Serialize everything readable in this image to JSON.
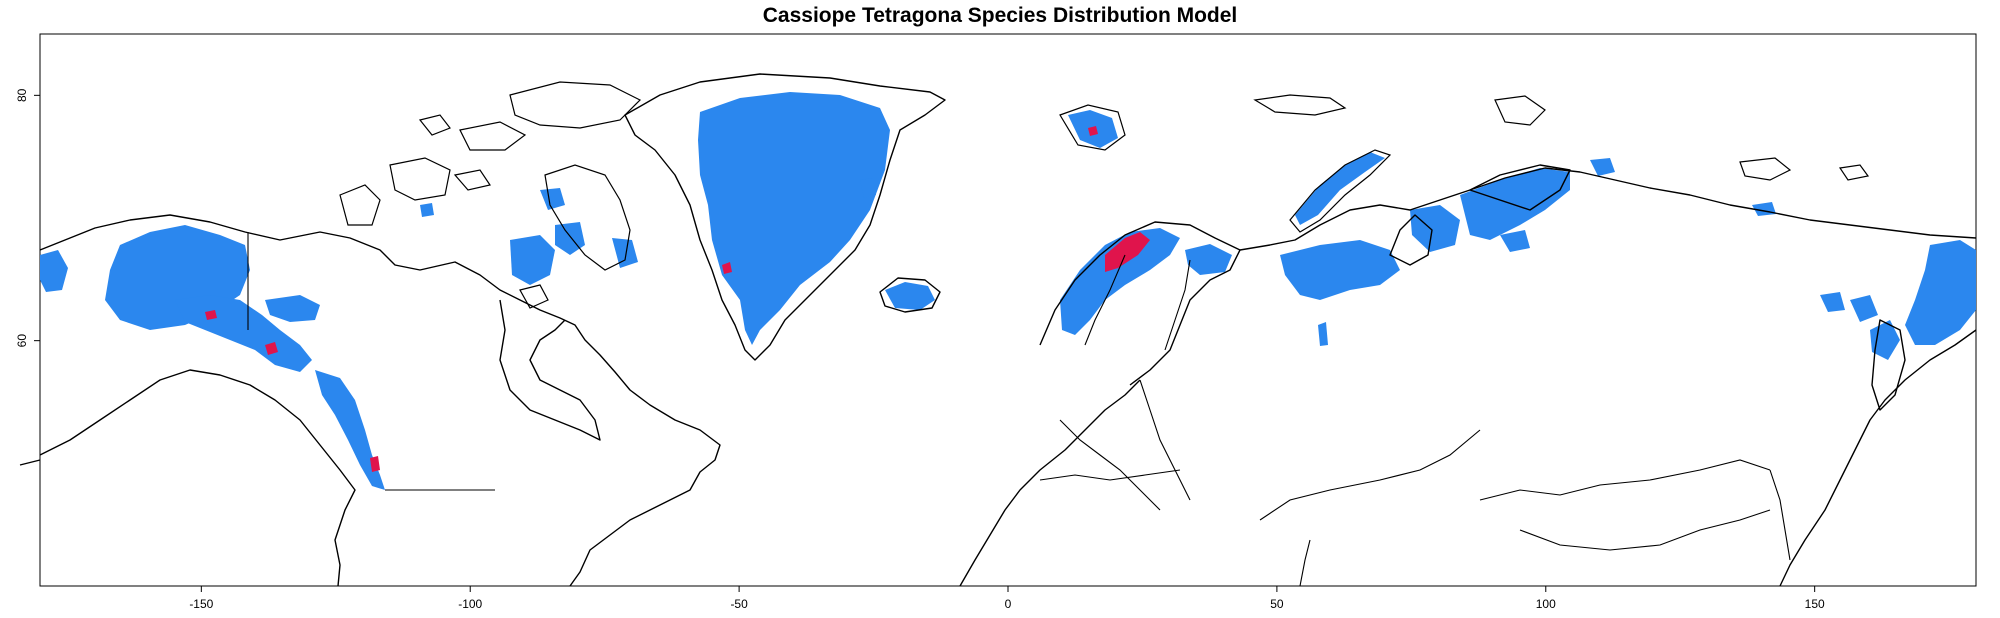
{
  "title": "Cassiope Tetragona Species Distribution Model",
  "colors": {
    "presence": "#2b87ee",
    "high_suitability": "#e0144c",
    "outline": "#000000",
    "background": "#ffffff"
  },
  "axes": {
    "x_ticks": [
      {
        "value": -150,
        "label": "-150"
      },
      {
        "value": -100,
        "label": "-100"
      },
      {
        "value": -50,
        "label": "-50"
      },
      {
        "value": 0,
        "label": "0"
      },
      {
        "value": 50,
        "label": "50"
      },
      {
        "value": 100,
        "label": "100"
      },
      {
        "value": 150,
        "label": "150"
      }
    ],
    "y_ticks": [
      {
        "value": 60,
        "label": "60"
      },
      {
        "value": 80,
        "label": "80"
      }
    ],
    "xlim": [
      -180,
      180
    ],
    "ylim": [
      40,
      85
    ]
  }
}
